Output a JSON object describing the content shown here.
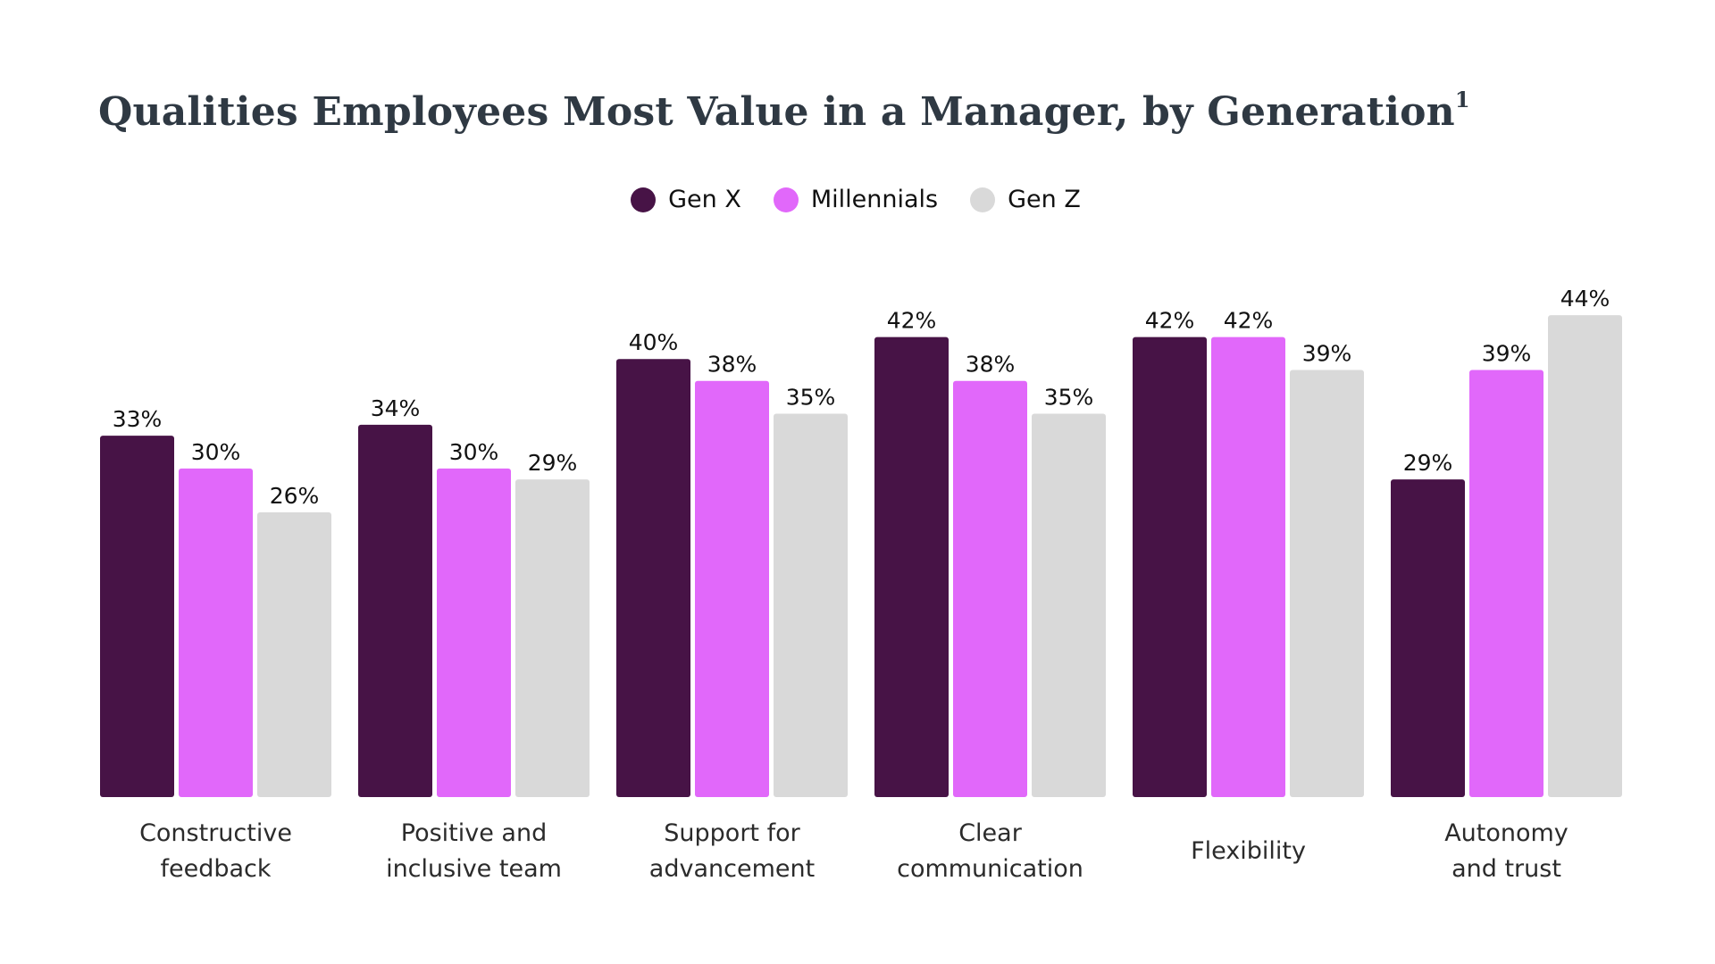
{
  "colors": {
    "gen_x": "#471346",
    "millennials": "#e168fa",
    "gen_z": "#d9d9d9",
    "title": "#2f3943"
  },
  "chart_data": {
    "type": "bar",
    "title": "Qualities Employees Most Value in a Manager, by Generation",
    "title_superscript": "1",
    "categories": [
      [
        "Constructive",
        "feedback"
      ],
      [
        "Positive and",
        "inclusive team"
      ],
      [
        "Support for",
        "advancement"
      ],
      [
        "Clear",
        "communication"
      ],
      [
        "Flexibility"
      ],
      [
        "Autonomy",
        "and trust"
      ]
    ],
    "series": [
      {
        "name": "Gen X",
        "color": "#471346",
        "values": [
          33,
          34,
          40,
          42,
          42,
          29
        ]
      },
      {
        "name": "Millennials",
        "color": "#e168fa",
        "values": [
          30,
          30,
          38,
          38,
          42,
          39
        ]
      },
      {
        "name": "Gen Z",
        "color": "#d9d9d9",
        "values": [
          26,
          29,
          35,
          35,
          39,
          44
        ]
      }
    ],
    "value_suffix": "%",
    "ylim": [
      0,
      44
    ],
    "grid": false,
    "legend": "top-center",
    "xlabel": "",
    "ylabel": ""
  }
}
